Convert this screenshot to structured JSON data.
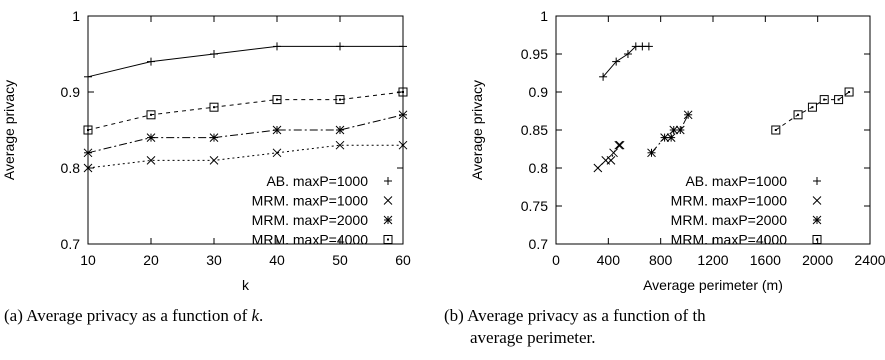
{
  "chart_data": [
    {
      "type": "line",
      "caption_prefix": "(a) Average privacy as a function of ",
      "caption_var": "k",
      "caption_suffix": ".",
      "xlabel": "k",
      "ylabel": "Average privacy",
      "xlim": [
        10,
        60
      ],
      "ylim": [
        0.7,
        1.0
      ],
      "xticks": [
        "10",
        "20",
        "30",
        "40",
        "50",
        "60"
      ],
      "yticks": [
        "0.7",
        "0.8",
        "0.9",
        "1"
      ],
      "grid": false,
      "legend_position": "bottom-right",
      "series": [
        {
          "name": "AB. maxP=1000",
          "marker": "plus",
          "dash": "",
          "x": [
            10,
            20,
            30,
            40,
            50,
            60
          ],
          "y": [
            0.92,
            0.94,
            0.95,
            0.96,
            0.96,
            0.96
          ]
        },
        {
          "name": "MRM. maxP=1000",
          "marker": "cross",
          "dash": "2,3",
          "x": [
            10,
            20,
            30,
            40,
            50,
            60
          ],
          "y": [
            0.8,
            0.81,
            0.81,
            0.82,
            0.83,
            0.83
          ]
        },
        {
          "name": "MRM. maxP=2000",
          "marker": "star",
          "dash": "8,3,2,3",
          "x": [
            10,
            20,
            30,
            40,
            50,
            60
          ],
          "y": [
            0.82,
            0.84,
            0.84,
            0.85,
            0.85,
            0.87
          ]
        },
        {
          "name": "MRM. maxP=4000",
          "marker": "square",
          "dash": "4,4",
          "x": [
            10,
            20,
            30,
            40,
            50,
            60
          ],
          "y": [
            0.85,
            0.87,
            0.88,
            0.89,
            0.89,
            0.9
          ]
        }
      ]
    },
    {
      "type": "line",
      "caption_line1": "(b) Average privacy as a function of th",
      "caption_line2": "average perimeter.",
      "xlabel": "Average perimeter (m)",
      "ylabel": "Average privacy",
      "xlim": [
        0,
        2400
      ],
      "ylim": [
        0.7,
        1.0
      ],
      "xticks": [
        "0",
        "400",
        "800",
        "1200",
        "1600",
        "2000",
        "2400"
      ],
      "yticks": [
        "0.7",
        "0.75",
        "0.8",
        "0.85",
        "0.9",
        "0.95",
        "1"
      ],
      "grid": false,
      "legend_position": "bottom-right",
      "series": [
        {
          "name": "AB. maxP=1000",
          "marker": "plus",
          "dash": "",
          "x": [
            360,
            460,
            550,
            610,
            660,
            710
          ],
          "y": [
            0.92,
            0.94,
            0.95,
            0.96,
            0.96,
            0.96
          ]
        },
        {
          "name": "MRM. maxP=1000",
          "marker": "cross",
          "dash": "2,3",
          "x": [
            320,
            380,
            420,
            440,
            480,
            490
          ],
          "y": [
            0.8,
            0.81,
            0.81,
            0.82,
            0.83,
            0.83
          ]
        },
        {
          "name": "MRM. maxP=2000",
          "marker": "star",
          "dash": "8,3,2,3",
          "x": [
            730,
            830,
            880,
            900,
            950,
            1010
          ],
          "y": [
            0.82,
            0.84,
            0.84,
            0.85,
            0.85,
            0.87
          ]
        },
        {
          "name": "MRM. maxP=4000",
          "marker": "square",
          "dash": "4,4",
          "x": [
            1680,
            1850,
            1960,
            2050,
            2160,
            2240
          ],
          "y": [
            0.85,
            0.87,
            0.88,
            0.89,
            0.89,
            0.9
          ]
        }
      ]
    }
  ]
}
